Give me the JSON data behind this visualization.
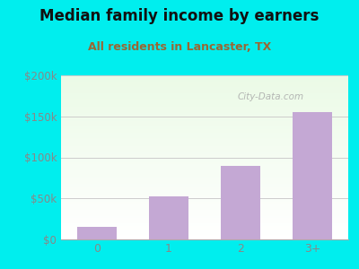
{
  "title": "Median family income by earners",
  "subtitle": "All residents in Lancaster, TX",
  "categories": [
    "0",
    "1",
    "2",
    "3+"
  ],
  "values": [
    15000,
    52000,
    90000,
    155000
  ],
  "bar_color": "#c4a8d4",
  "ylim": [
    0,
    200000
  ],
  "yticks": [
    0,
    50000,
    100000,
    150000,
    200000
  ],
  "ytick_labels": [
    "$0",
    "$50k",
    "$100k",
    "$150k",
    "$200k"
  ],
  "outer_bg": "#00eeee",
  "title_color": "#111111",
  "subtitle_color": "#996633",
  "title_fontsize": 12,
  "subtitle_fontsize": 9,
  "watermark": "City-Data.com",
  "tick_color": "#888888"
}
